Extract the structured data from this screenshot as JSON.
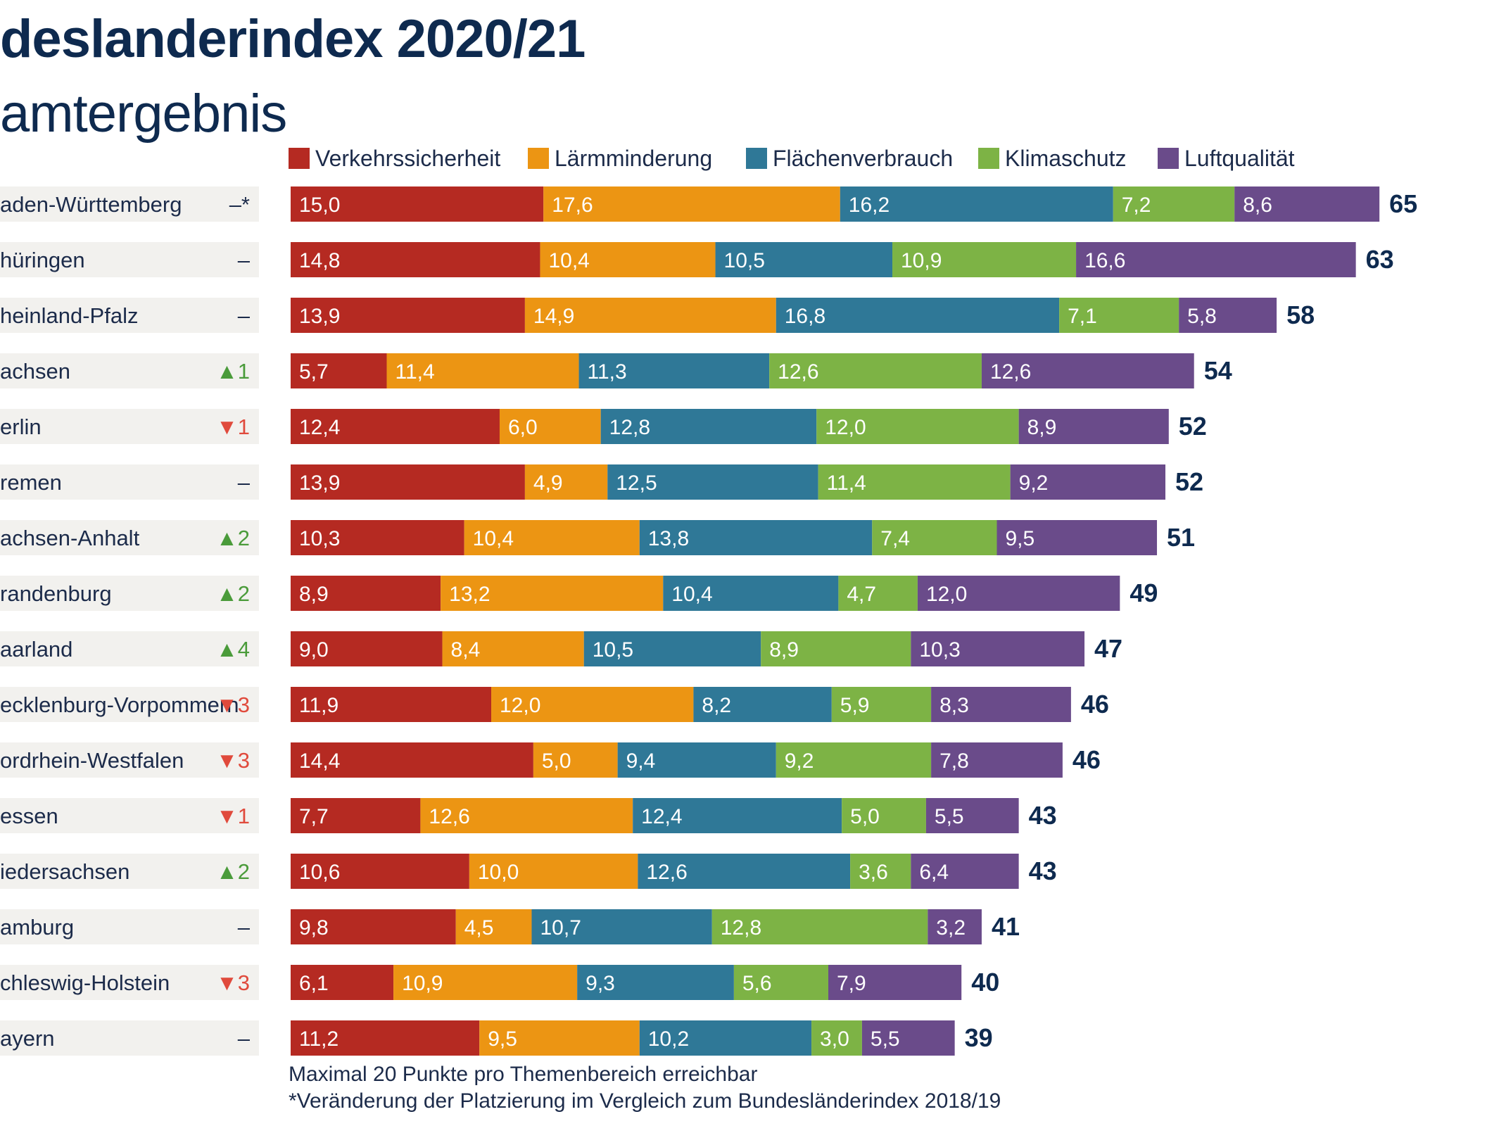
{
  "header": {
    "title": "deslanderindex 2020/21",
    "subtitle": "amtergebnis"
  },
  "footnote": {
    "line1": "Maximal 20 Punkte pro Themenbereich erreichbar",
    "line2": "*Veränderung der Platzierung im Vergleich zum Bundesländerindex 2018/19"
  },
  "colors": {
    "Verkehrssicherheit": "#b52a22",
    "Lärmminderung": "#ec9513",
    "Flächenverbrauch": "#2f7897",
    "Klimaschutz": "#7db345",
    "Luftqualität": "#6a4b8a",
    "up": "#4a9b3a",
    "down": "#e04a3c",
    "row_bg": "#f2f1ee",
    "total": "#0e2a4f"
  },
  "chart_data": {
    "type": "bar",
    "orientation": "horizontal",
    "stacked": true,
    "legend_position": "top",
    "categories": [
      "aden-Württemberg",
      "hüringen",
      "heinland-Pfalz",
      "achsen",
      "erlin",
      "remen",
      "achsen-Anhalt",
      "randenburg",
      "aarland",
      "ecklenburg-Vorpommern",
      "ordrhein-Westfalen",
      "essen",
      "iedersachsen",
      "amburg",
      "chleswig-Holstein",
      "ayern"
    ],
    "rank_change": [
      {
        "symbol": "–*",
        "direction": "none"
      },
      {
        "symbol": "–",
        "direction": "none"
      },
      {
        "symbol": "–",
        "direction": "none"
      },
      {
        "symbol": "▲1",
        "direction": "up"
      },
      {
        "symbol": "▼1",
        "direction": "down"
      },
      {
        "symbol": "–",
        "direction": "none"
      },
      {
        "symbol": "▲2",
        "direction": "up"
      },
      {
        "symbol": "▲2",
        "direction": "up"
      },
      {
        "symbol": "▲4",
        "direction": "up"
      },
      {
        "symbol": "▼3",
        "direction": "down"
      },
      {
        "symbol": "▼3",
        "direction": "down"
      },
      {
        "symbol": "▼1",
        "direction": "down"
      },
      {
        "symbol": "▲2",
        "direction": "up"
      },
      {
        "symbol": "–",
        "direction": "none"
      },
      {
        "symbol": "▼3",
        "direction": "down"
      },
      {
        "symbol": "–",
        "direction": "none"
      }
    ],
    "series": [
      {
        "name": "Verkehrssicherheit",
        "values": [
          15.0,
          14.8,
          13.9,
          5.7,
          12.4,
          13.9,
          10.3,
          8.9,
          9.0,
          11.9,
          14.4,
          7.7,
          10.6,
          9.8,
          6.1,
          11.2
        ],
        "labels": [
          "15,0",
          "14,8",
          "13,9",
          "5,7",
          "12,4",
          "13,9",
          "10,3",
          "8,9",
          "9,0",
          "11,9",
          "14,4",
          "7,7",
          "10,6",
          "9,8",
          "6,1",
          "11,2"
        ]
      },
      {
        "name": "Lärmminderung",
        "values": [
          17.6,
          10.4,
          14.9,
          11.4,
          6.0,
          4.9,
          10.4,
          13.2,
          8.4,
          12.0,
          5.0,
          12.6,
          10.0,
          4.5,
          10.9,
          9.5
        ],
        "labels": [
          "17,6",
          "10,4",
          "14,9",
          "11,4",
          "6,0",
          "4,9",
          "10,4",
          "13,2",
          "8,4",
          "12,0",
          "5,0",
          "12,6",
          "10,0",
          "4,5",
          "10,9",
          "9,5"
        ]
      },
      {
        "name": "Flächenverbrauch",
        "values": [
          16.2,
          10.5,
          16.8,
          11.3,
          12.8,
          12.5,
          13.8,
          10.4,
          10.5,
          8.2,
          9.4,
          12.4,
          12.6,
          10.7,
          9.3,
          10.2
        ],
        "labels": [
          "16,2",
          "10,5",
          "16,8",
          "11,3",
          "12,8",
          "12,5",
          "13,8",
          "10,4",
          "10,5",
          "8,2",
          "9,4",
          "12,4",
          "12,6",
          "10,7",
          "9,3",
          "10,2"
        ]
      },
      {
        "name": "Klimaschutz",
        "values": [
          7.2,
          10.9,
          7.1,
          12.6,
          12.0,
          11.4,
          7.4,
          4.7,
          8.9,
          5.9,
          9.2,
          5.0,
          3.6,
          12.8,
          5.6,
          3.0
        ],
        "labels": [
          "7,2",
          "10,9",
          "7,1",
          "12,6",
          "12,0",
          "11,4",
          "7,4",
          "4,7",
          "8,9",
          "5,9",
          "9,2",
          "5,0",
          "3,6",
          "12,8",
          "5,6",
          "3,0"
        ]
      },
      {
        "name": "Luftqualität",
        "values": [
          8.6,
          16.6,
          5.8,
          12.6,
          8.9,
          9.2,
          9.5,
          12.0,
          10.3,
          8.3,
          7.8,
          5.5,
          6.4,
          3.2,
          7.9,
          5.5
        ],
        "labels": [
          "8,6",
          "16,6",
          "5,8",
          "12,6",
          "8,9",
          "9,2",
          "9,5",
          "12,0",
          "10,3",
          "8,3",
          "7,8",
          "5,5",
          "6,4",
          "3,2",
          "7,9",
          "5,5"
        ]
      }
    ],
    "totals": [
      65,
      63,
      58,
      54,
      52,
      52,
      51,
      49,
      47,
      46,
      46,
      43,
      43,
      41,
      40,
      39
    ],
    "xlim": [
      0,
      65
    ],
    "grid": false
  }
}
